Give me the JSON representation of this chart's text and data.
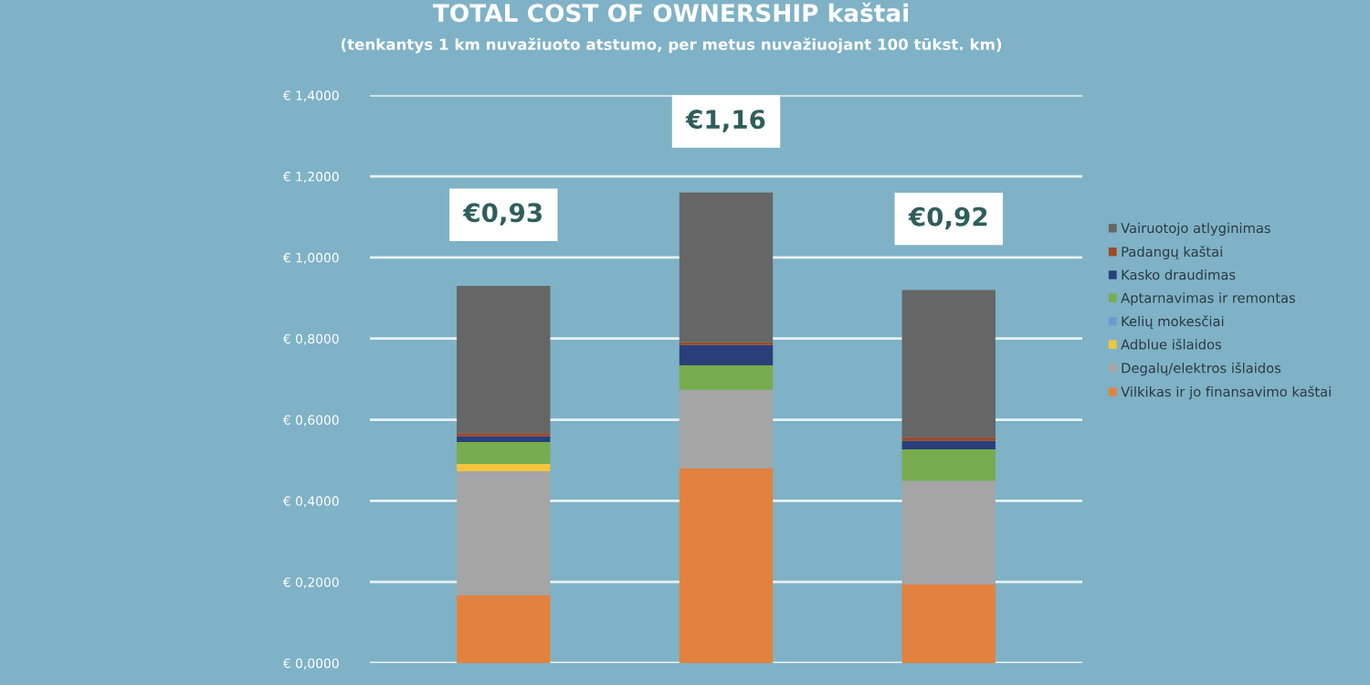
{
  "chart_data": {
    "type": "bar",
    "stacked": true,
    "title": "TOTAL COST OF OWNERSHIP kaštai",
    "subtitle": "(tenkantys 1 km nuvažiuoto atstumo, per metus nuvažiuojant 100 tūkst. km)",
    "categories": [
      null,
      null,
      null
    ],
    "series": [
      {
        "name": "Vilkikas ir jo finansavimo kaštai",
        "color": "#e3813f",
        "values": [
          0.167,
          0.48,
          0.194
        ]
      },
      {
        "name": "Degalų/elektros išlaidos",
        "color": "#a5a5a5",
        "values": [
          0.306,
          0.194,
          0.255
        ]
      },
      {
        "name": "Adblue išlaidos",
        "color": "#f2c53d",
        "values": [
          0.018,
          0,
          0
        ]
      },
      {
        "name": "Kelių mokesčiai",
        "color": "#6c9bd2",
        "values": [
          0,
          0,
          0
        ]
      },
      {
        "name": "Aptarnavimas ir remontas",
        "color": "#77ad4f",
        "values": [
          0.054,
          0.06,
          0.078
        ]
      },
      {
        "name": "Kasko draudimas",
        "color": "#2a3f7a",
        "values": [
          0.014,
          0.05,
          0.021
        ]
      },
      {
        "name": "Padangų kaštai",
        "color": "#9e4a28",
        "values": [
          0.008,
          0.007,
          0.009
        ]
      },
      {
        "name": "Vairuotojo atlyginimas",
        "color": "#666666",
        "values": [
          0.363,
          0.369,
          0.363
        ]
      }
    ],
    "totals": [
      "€0,93",
      "€1,16",
      "€0,92"
    ],
    "ylim": [
      0,
      1.4
    ],
    "yticks": [
      {
        "value": 0,
        "label": "€ 0,0000"
      },
      {
        "value": 0.2,
        "label": "€ 0,2000"
      },
      {
        "value": 0.4,
        "label": "€ 0,4000"
      },
      {
        "value": 0.6,
        "label": "€ 0,6000"
      },
      {
        "value": 0.8,
        "label": "€ 0,8000"
      },
      {
        "value": 1.0,
        "label": "€ 1,0000"
      },
      {
        "value": 1.2,
        "label": "€ 1,2000"
      },
      {
        "value": 1.4,
        "label": "€ 1,4000"
      }
    ],
    "grid": "y",
    "legend": "right"
  }
}
